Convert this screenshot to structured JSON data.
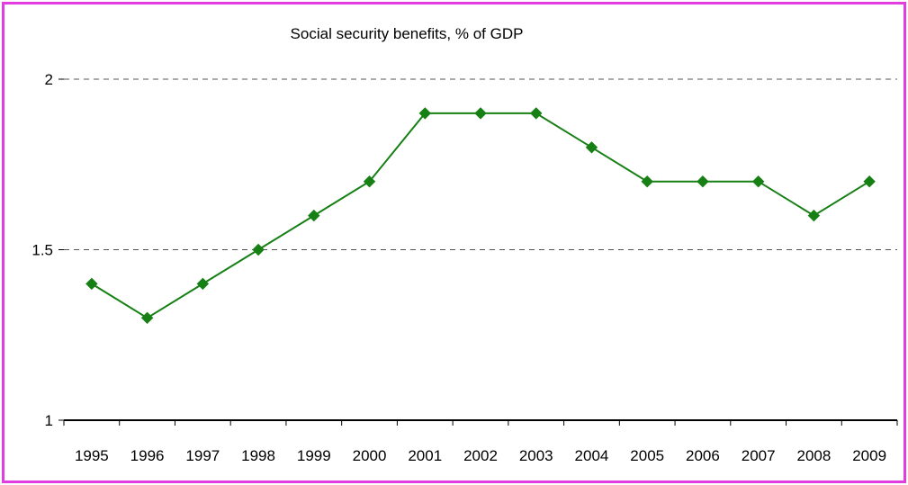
{
  "chart_data": {
    "type": "line",
    "title": "Social security benefits, % of GDP",
    "categories": [
      "1995",
      "1996",
      "1997",
      "1998",
      "1999",
      "2000",
      "2001",
      "2002",
      "2003",
      "2004",
      "2005",
      "2006",
      "2007",
      "2008",
      "2009"
    ],
    "series": [
      {
        "values": [
          1.4,
          1.3,
          1.4,
          1.5,
          1.6,
          1.7,
          1.9,
          1.9,
          1.9,
          1.8,
          1.7,
          1.7,
          1.7,
          1.6,
          1.7
        ]
      }
    ],
    "ylim": [
      1,
      2
    ],
    "yticks": [
      "1",
      "1.5",
      "2"
    ],
    "xlabel": "",
    "ylabel": "",
    "grid": "horizontal dashed",
    "legend": "none",
    "colors": {
      "line": "#168014",
      "marker": "#168014",
      "frame": "#e23de0",
      "grid": "#555555"
    }
  }
}
